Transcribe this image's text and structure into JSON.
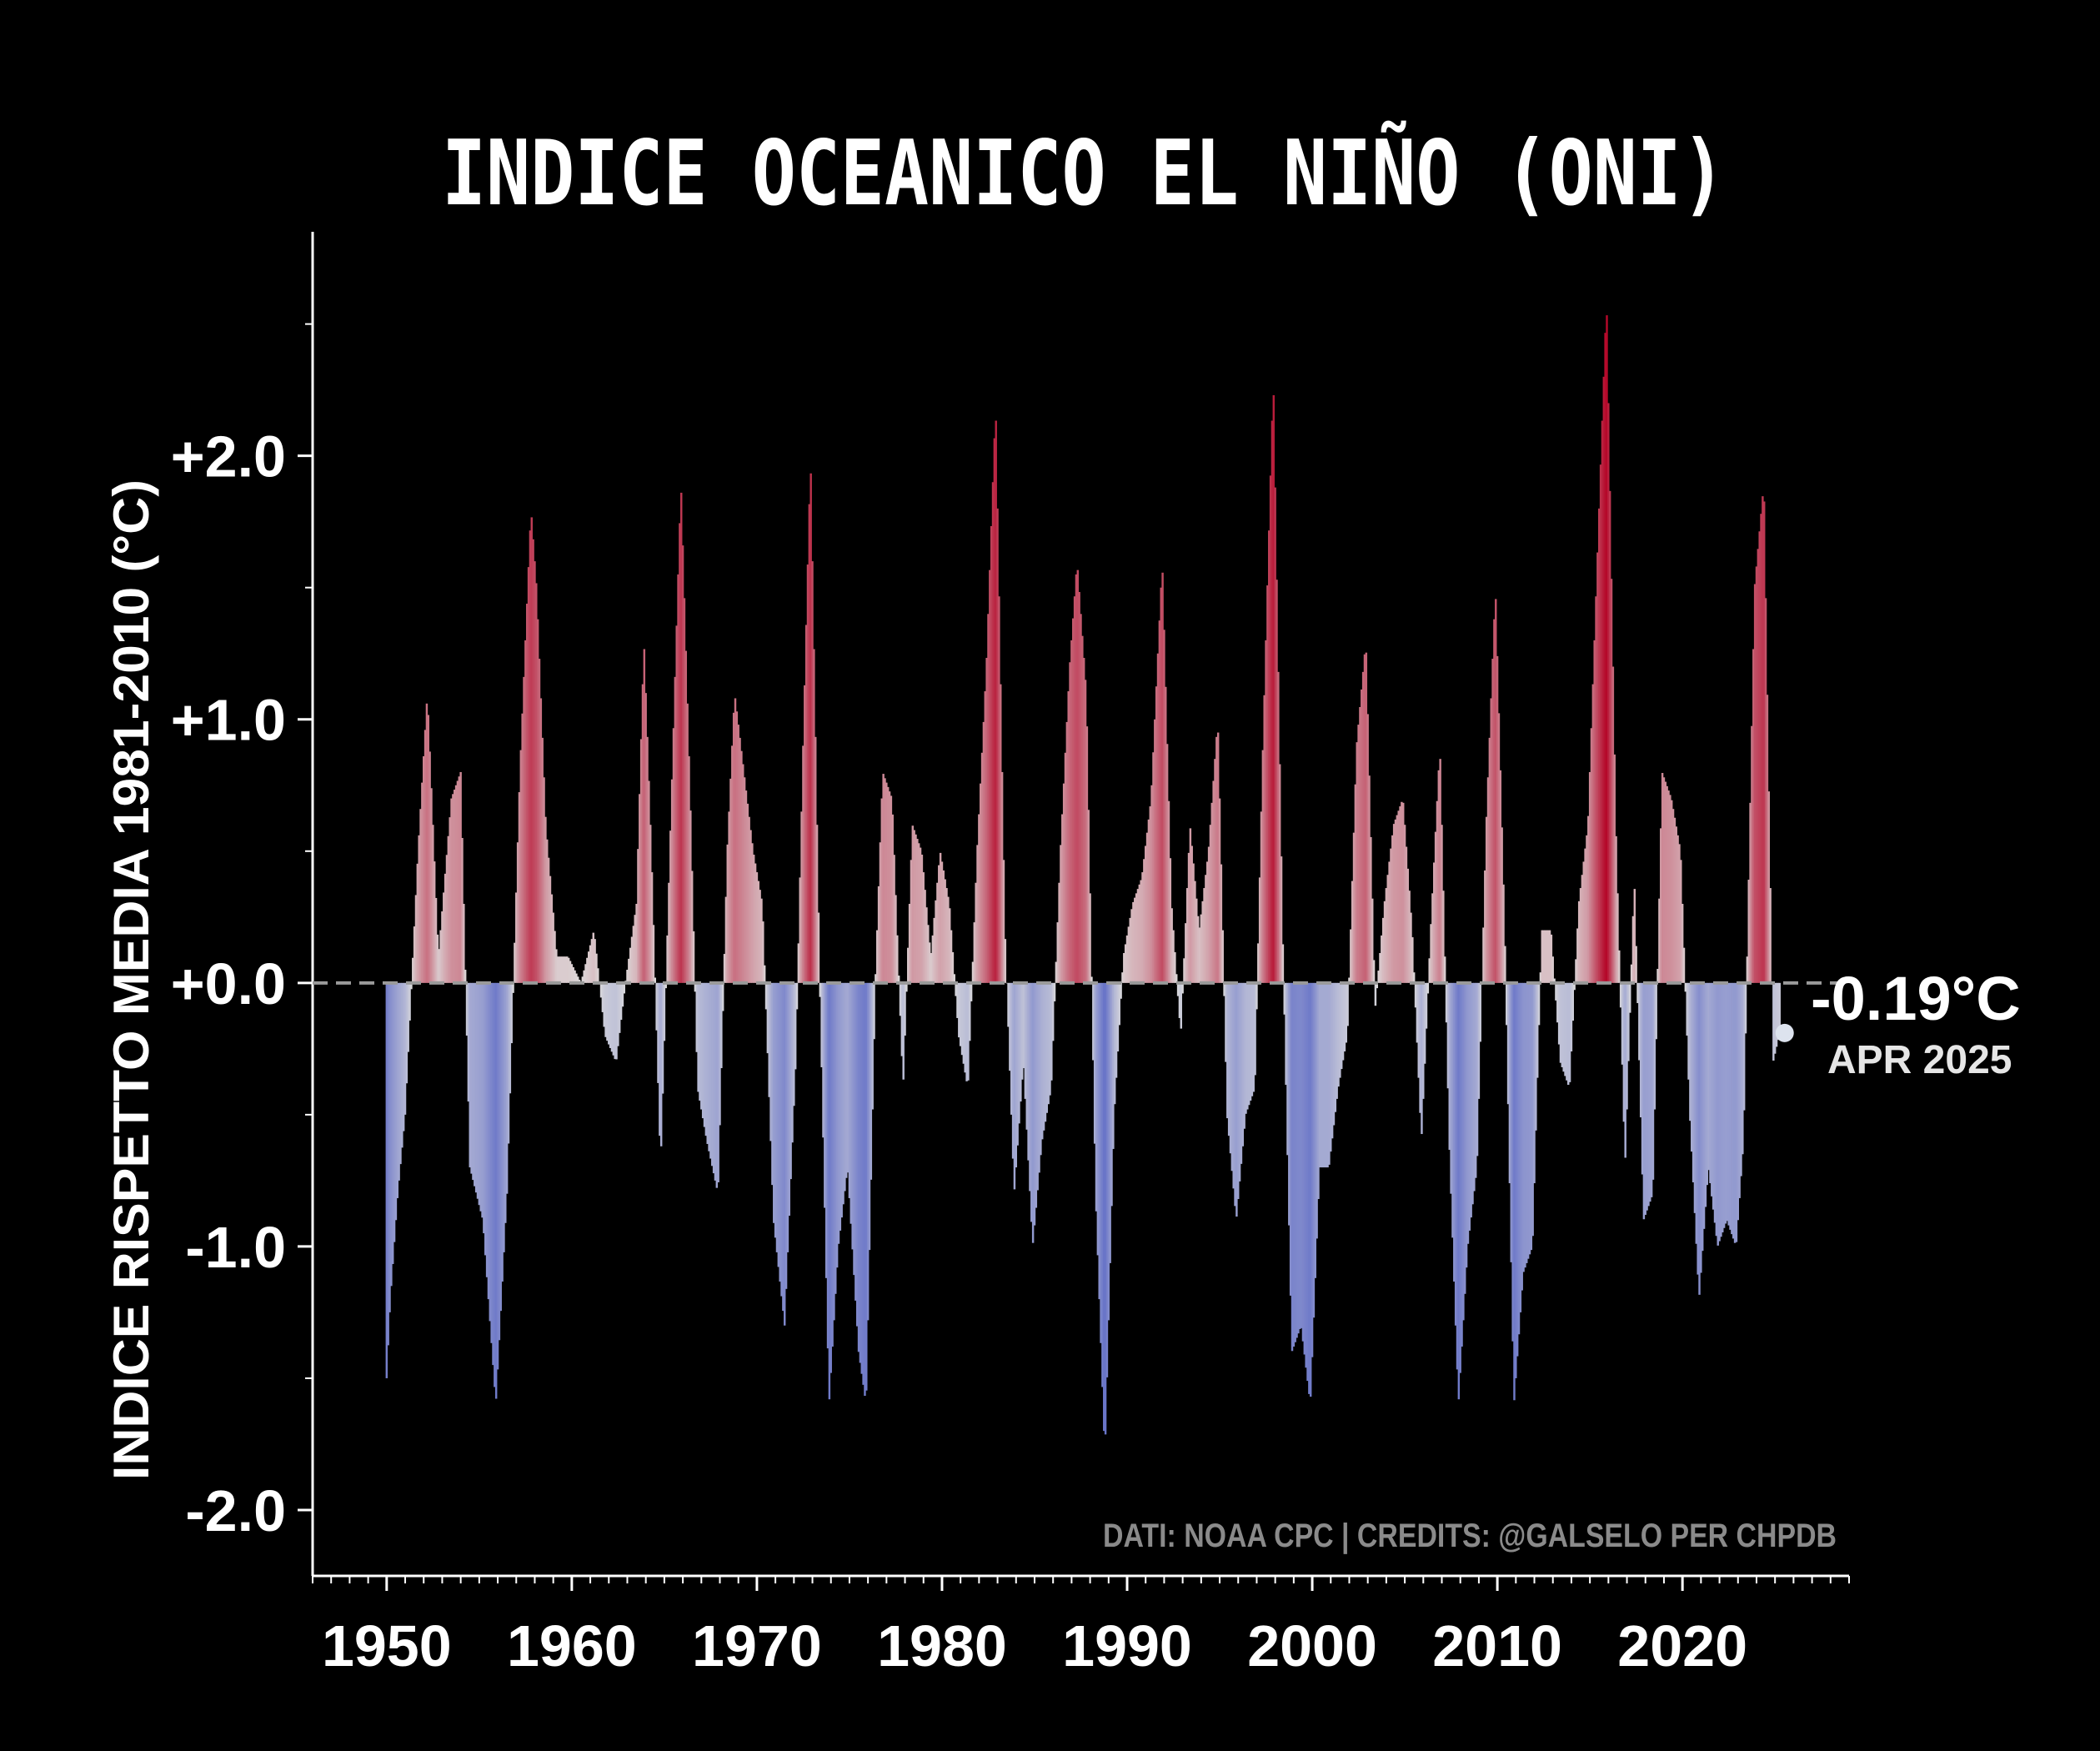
{
  "chart_data": {
    "type": "bar",
    "title": "INDICE OCEANICO EL NIÑO (ONI)",
    "ylabel": "INDICE RISPETTO MEDIA 1981-2010 (°C)",
    "xlabel": "",
    "xlim": [
      1946,
      2029
    ],
    "ylim": [
      -2.25,
      2.85
    ],
    "x_ticks": [
      1950,
      1960,
      1970,
      1980,
      1990,
      2000,
      2010,
      2020
    ],
    "x_tick_labels": [
      "1950",
      "1960",
      "1970",
      "1980",
      "1990",
      "2000",
      "2010",
      "2020"
    ],
    "y_ticks": [
      2.0,
      1.0,
      0.0,
      -1.0,
      -2.0
    ],
    "y_tick_labels": [
      "+2.0",
      "+1.0",
      "+0.0",
      "-1.0",
      "-2.0"
    ],
    "grid": false,
    "zero_line": "dashed",
    "colormap": "coolwarm",
    "colors": {
      "warm": "#b40426",
      "cool": "#3b4cc0",
      "neutral": "#dddcdc",
      "background": "#000000"
    },
    "series": [
      {
        "interpolation": "linear",
        "keyframes_x": [
          1950.0,
          1950.2,
          1950.6,
          1951.0,
          1951.7,
          1952.2,
          1952.8,
          1953.5,
          1954.0,
          1954.5,
          1955.2,
          1955.9,
          1956.5,
          1957.2,
          1957.8,
          1958.1,
          1958.6,
          1959.2,
          1959.8,
          1960.5,
          1961.2,
          1961.8,
          1962.4,
          1962.9,
          1963.5,
          1963.9,
          1964.3,
          1964.8,
          1965.3,
          1965.9,
          1966.4,
          1966.8,
          1967.3,
          1967.9,
          1968.4,
          1968.8,
          1969.3,
          1969.8,
          1970.3,
          1970.9,
          1971.5,
          1972.1,
          1972.5,
          1972.9,
          1973.4,
          1973.9,
          1974.4,
          1974.9,
          1975.5,
          1975.9,
          1976.4,
          1976.8,
          1977.3,
          1977.9,
          1978.4,
          1978.9,
          1979.4,
          1979.9,
          1980.4,
          1980.9,
          1981.4,
          1981.9,
          1982.4,
          1982.9,
          1983.4,
          1983.9,
          1984.4,
          1984.9,
          1985.4,
          1985.9,
          1986.4,
          1986.9,
          1987.3,
          1987.8,
          1988.3,
          1988.8,
          1989.3,
          1989.8,
          1990.3,
          1990.8,
          1991.3,
          1991.9,
          1992.4,
          1992.9,
          1993.4,
          1993.9,
          1994.4,
          1994.9,
          1995.4,
          1995.9,
          1996.4,
          1996.9,
          1997.3,
          1997.9,
          1998.4,
          1998.9,
          1999.4,
          1999.9,
          2000.4,
          2000.9,
          2001.4,
          2001.9,
          2002.4,
          2002.9,
          2003.4,
          2003.9,
          2004.4,
          2004.9,
          2005.4,
          2005.9,
          2006.4,
          2006.9,
          2007.4,
          2007.9,
          2008.4,
          2008.9,
          2009.4,
          2009.9,
          2010.4,
          2010.9,
          2011.4,
          2011.9,
          2012.4,
          2012.9,
          2013.4,
          2013.9,
          2014.4,
          2014.9,
          2015.4,
          2015.9,
          2016.4,
          2016.9,
          2017.4,
          2017.9,
          2018.4,
          2018.9,
          2019.4,
          2019.9,
          2020.4,
          2020.9,
          2021.4,
          2021.9,
          2022.4,
          2022.9,
          2023.3,
          2023.9,
          2024.4,
          2024.9,
          2025.25
        ],
        "keyframes_y": [
          -1.5,
          -1.2,
          -0.8,
          -0.5,
          0.5,
          1.1,
          0.1,
          0.7,
          0.8,
          -0.7,
          -0.9,
          -1.6,
          -0.8,
          0.8,
          1.8,
          1.5,
          0.6,
          0.1,
          0.1,
          0.0,
          0.2,
          -0.2,
          -0.3,
          0.0,
          0.3,
          1.3,
          0.5,
          -0.7,
          0.5,
          1.9,
          0.7,
          -0.4,
          -0.6,
          -0.8,
          0.5,
          1.1,
          0.8,
          0.5,
          0.3,
          -0.9,
          -1.3,
          -0.3,
          0.9,
          2.0,
          0.0,
          -1.6,
          -1.0,
          -0.7,
          -1.4,
          -1.6,
          0.0,
          0.8,
          0.7,
          -0.4,
          0.6,
          0.5,
          0.1,
          0.5,
          0.3,
          -0.2,
          -0.4,
          0.5,
          1.2,
          2.2,
          0.2,
          -0.8,
          -0.3,
          -1.0,
          -0.6,
          -0.4,
          0.5,
          1.2,
          1.6,
          1.1,
          -0.8,
          -1.8,
          -0.5,
          0.1,
          0.3,
          0.4,
          0.7,
          1.6,
          0.3,
          -0.2,
          0.6,
          0.2,
          0.5,
          1.0,
          -0.5,
          -0.9,
          -0.5,
          -0.4,
          0.8,
          2.3,
          0.2,
          -1.4,
          -1.3,
          -1.6,
          -0.7,
          -0.7,
          -0.4,
          -0.2,
          0.9,
          1.3,
          -0.1,
          0.3,
          0.6,
          0.7,
          0.2,
          -0.6,
          0.2,
          0.9,
          -0.6,
          -1.6,
          -1.0,
          -0.7,
          0.6,
          1.5,
          0.2,
          -1.6,
          -1.1,
          -1.0,
          0.2,
          0.2,
          -0.3,
          -0.4,
          0.3,
          0.6,
          1.6,
          2.6,
          0.6,
          -0.7,
          0.4,
          -0.9,
          -0.8,
          0.8,
          0.7,
          0.5,
          -0.5,
          -1.2,
          -0.7,
          -1.0,
          -0.9,
          -1.0,
          -0.6,
          1.5,
          1.9,
          -0.3,
          -0.19
        ]
      }
    ],
    "last_value_annotation": {
      "value_label": "-0.19°C",
      "date_label": "APR 2025",
      "x": 2025.25,
      "y": -0.19
    },
    "credits": "DATI: NOAA CPC | CREDITS: @GALSELO PER CHPDB"
  }
}
